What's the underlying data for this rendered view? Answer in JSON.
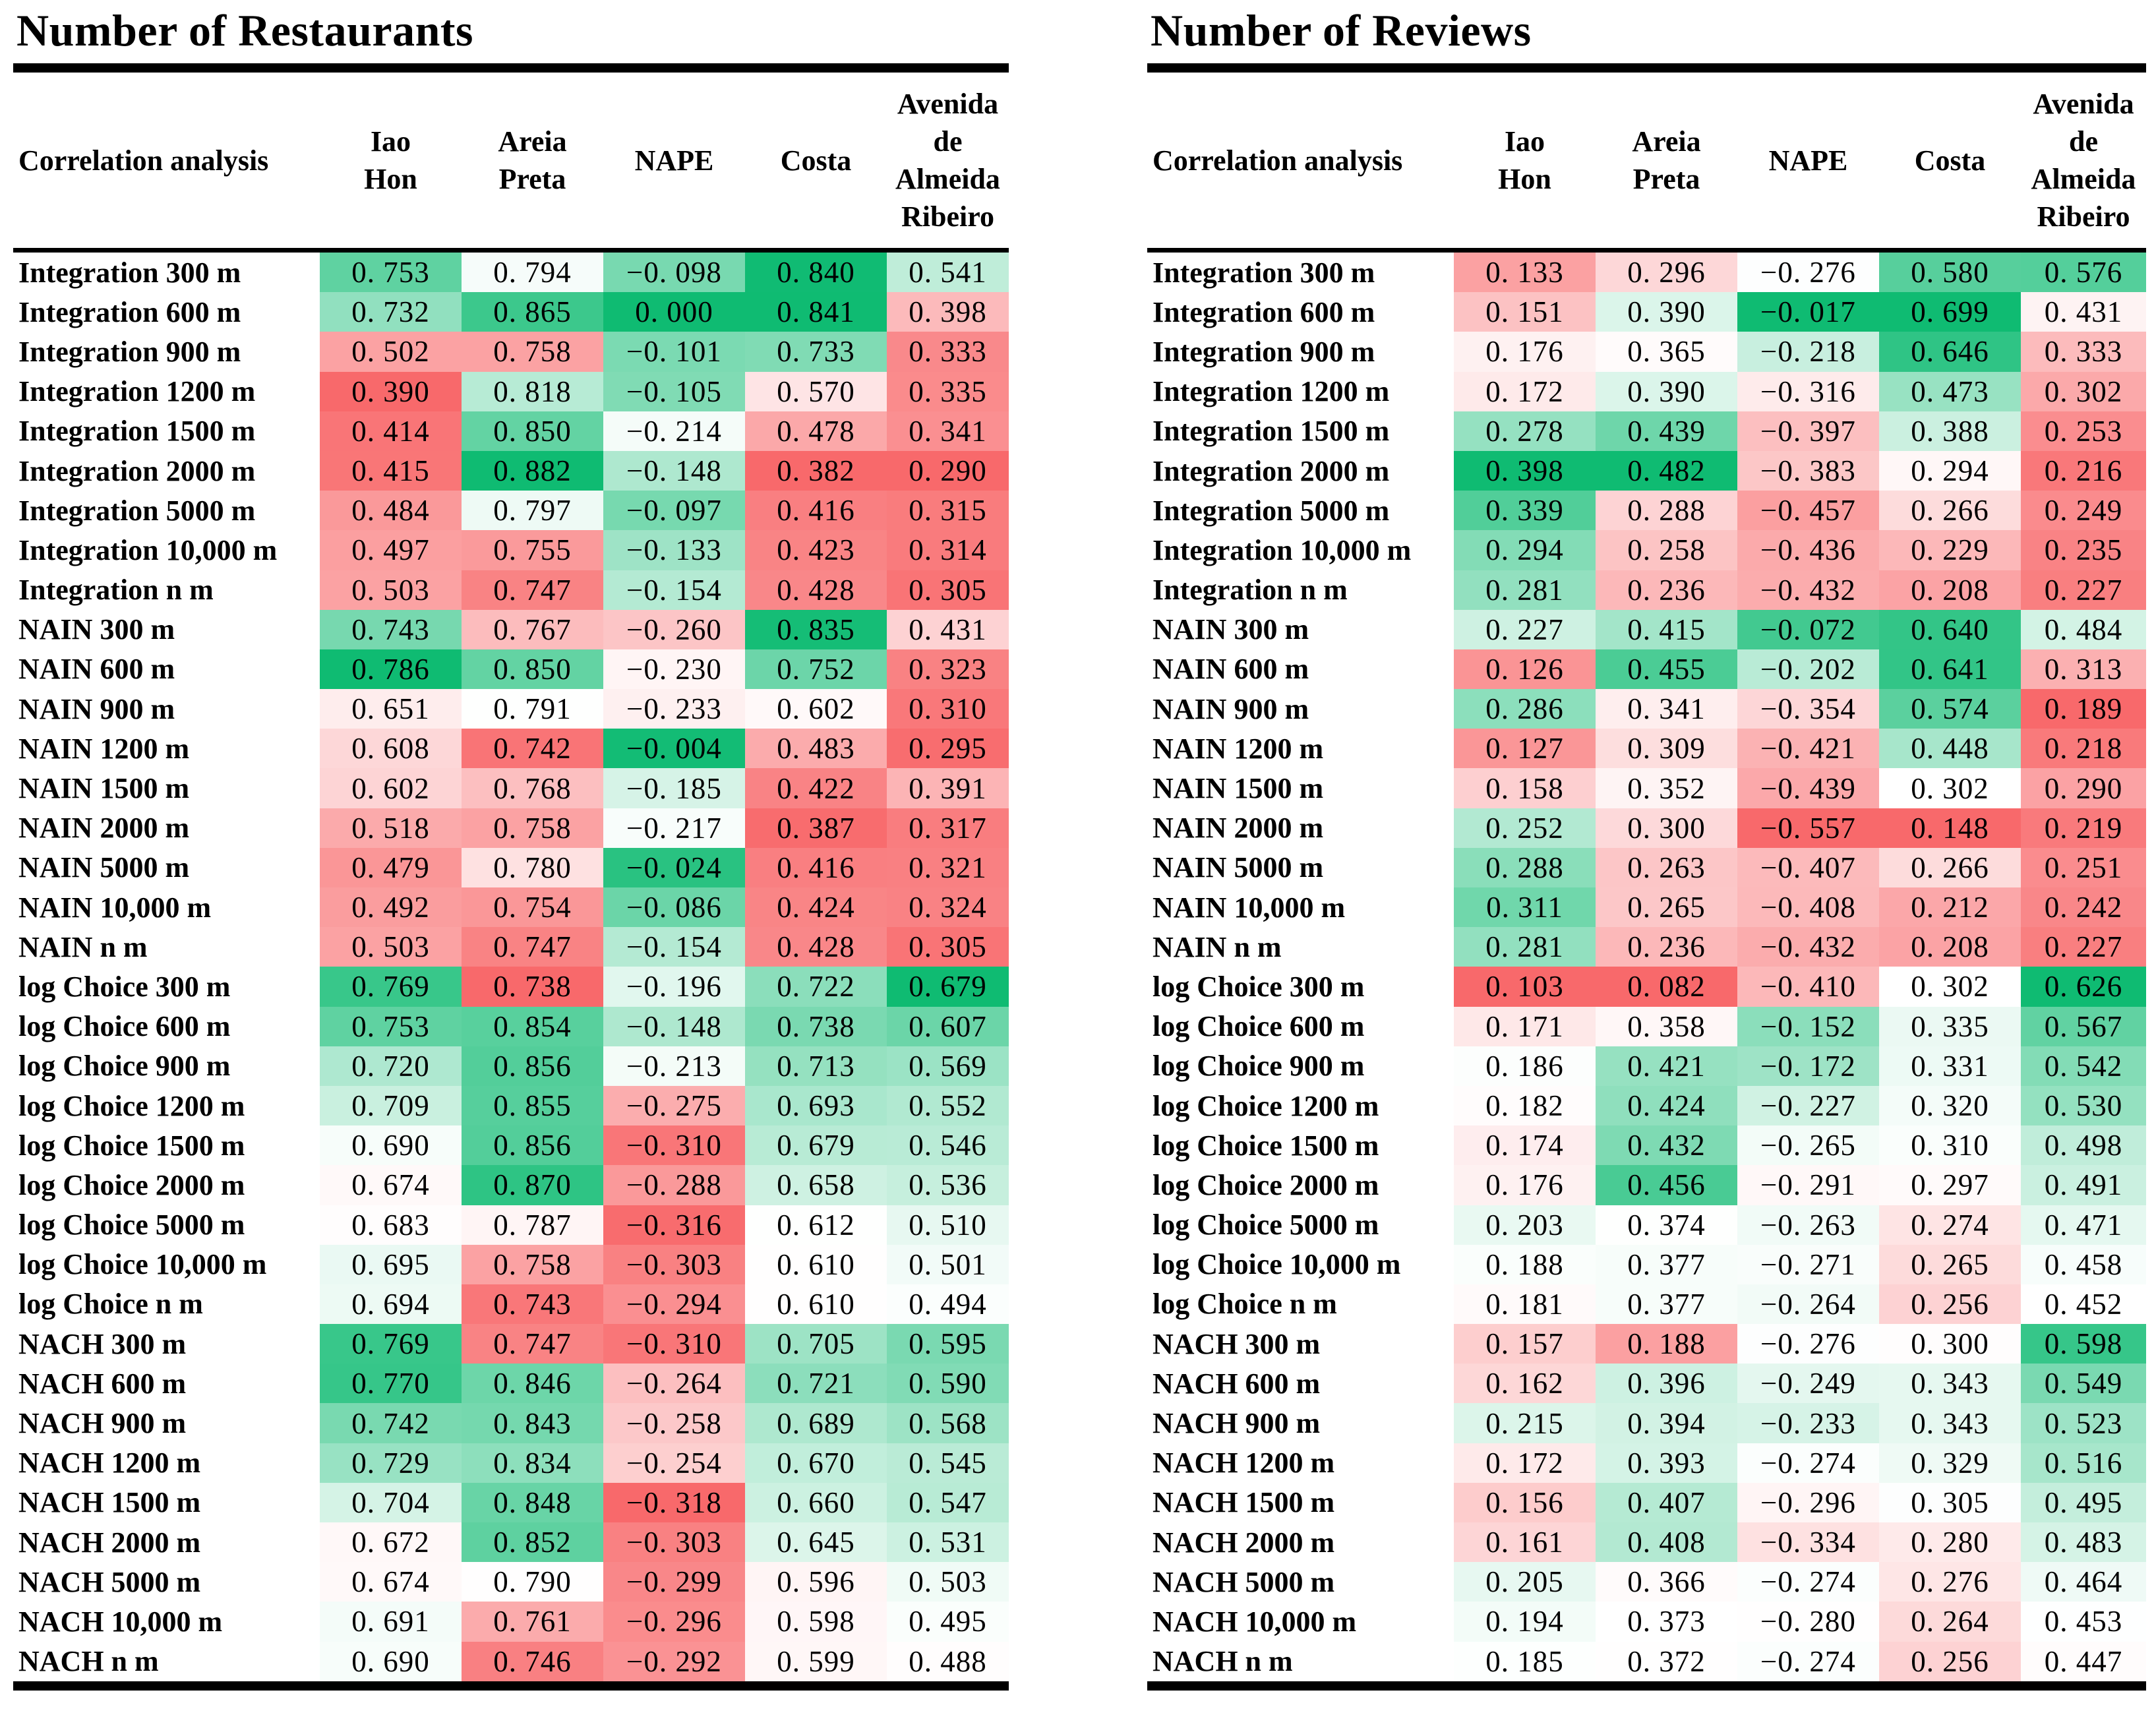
{
  "colors": {
    "scale_min": "#F8696B",
    "scale_mid": "#FFFFFF",
    "scale_max": "#0FBB72",
    "rule": "#000000",
    "text": "#000000"
  },
  "tables": [
    {
      "title": "Number of Restaurants",
      "corner_header": "Correlation analysis",
      "col_headers": [
        [
          "Iao",
          "Hon"
        ],
        [
          "Areia",
          "Preta"
        ],
        [
          "NAPE"
        ],
        [
          "Costa"
        ],
        [
          "Avenida",
          "de",
          "Almeida",
          "Ribeiro"
        ]
      ],
      "rows": [
        {
          "label": "Integration 300 m",
          "values": [
            0.753,
            0.794,
            -0.098,
            0.84,
            0.541
          ]
        },
        {
          "label": "Integration 600 m",
          "values": [
            0.732,
            0.865,
            0.0,
            0.841,
            0.398
          ]
        },
        {
          "label": "Integration 900 m",
          "values": [
            0.502,
            0.758,
            -0.101,
            0.733,
            0.333
          ]
        },
        {
          "label": "Integration 1200 m",
          "values": [
            0.39,
            0.818,
            -0.105,
            0.57,
            0.335
          ]
        },
        {
          "label": "Integration 1500 m",
          "values": [
            0.414,
            0.85,
            -0.214,
            0.478,
            0.341
          ]
        },
        {
          "label": "Integration 2000 m",
          "values": [
            0.415,
            0.882,
            -0.148,
            0.382,
            0.29
          ]
        },
        {
          "label": "Integration 5000 m",
          "values": [
            0.484,
            0.797,
            -0.097,
            0.416,
            0.315
          ]
        },
        {
          "label": "Integration 10,000 m",
          "values": [
            0.497,
            0.755,
            -0.133,
            0.423,
            0.314
          ]
        },
        {
          "label": "Integration n m",
          "values": [
            0.503,
            0.747,
            -0.154,
            0.428,
            0.305
          ]
        },
        {
          "label": "NAIN 300 m",
          "values": [
            0.743,
            0.767,
            -0.26,
            0.835,
            0.431
          ]
        },
        {
          "label": "NAIN 600 m",
          "values": [
            0.786,
            0.85,
            -0.23,
            0.752,
            0.323
          ]
        },
        {
          "label": "NAIN 900 m",
          "values": [
            0.651,
            0.791,
            -0.233,
            0.602,
            0.31
          ]
        },
        {
          "label": "NAIN 1200 m",
          "values": [
            0.608,
            0.742,
            -0.004,
            0.483,
            0.295
          ]
        },
        {
          "label": "NAIN 1500 m",
          "values": [
            0.602,
            0.768,
            -0.185,
            0.422,
            0.391
          ]
        },
        {
          "label": "NAIN 2000 m",
          "values": [
            0.518,
            0.758,
            -0.217,
            0.387,
            0.317
          ]
        },
        {
          "label": "NAIN 5000 m",
          "values": [
            0.479,
            0.78,
            -0.024,
            0.416,
            0.321
          ]
        },
        {
          "label": "NAIN 10,000 m",
          "values": [
            0.492,
            0.754,
            -0.086,
            0.424,
            0.324
          ]
        },
        {
          "label": "NAIN n m",
          "values": [
            0.503,
            0.747,
            -0.154,
            0.428,
            0.305
          ]
        },
        {
          "label": "log Choice 300 m",
          "values": [
            0.769,
            0.738,
            -0.196,
            0.722,
            0.679
          ]
        },
        {
          "label": "log Choice 600 m",
          "values": [
            0.753,
            0.854,
            -0.148,
            0.738,
            0.607
          ]
        },
        {
          "label": "log Choice 900 m",
          "values": [
            0.72,
            0.856,
            -0.213,
            0.713,
            0.569
          ]
        },
        {
          "label": "log Choice 1200 m",
          "values": [
            0.709,
            0.855,
            -0.275,
            0.693,
            0.552
          ]
        },
        {
          "label": "log Choice 1500 m",
          "values": [
            0.69,
            0.856,
            -0.31,
            0.679,
            0.546
          ]
        },
        {
          "label": "log Choice 2000 m",
          "values": [
            0.674,
            0.87,
            -0.288,
            0.658,
            0.536
          ]
        },
        {
          "label": "log Choice 5000 m",
          "values": [
            0.683,
            0.787,
            -0.316,
            0.612,
            0.51
          ]
        },
        {
          "label": "log Choice 10,000 m",
          "values": [
            0.695,
            0.758,
            -0.303,
            0.61,
            0.501
          ]
        },
        {
          "label": "log Choice n m",
          "values": [
            0.694,
            0.743,
            -0.294,
            0.61,
            0.494
          ]
        },
        {
          "label": "NACH 300 m",
          "values": [
            0.769,
            0.747,
            -0.31,
            0.705,
            0.595
          ]
        },
        {
          "label": "NACH 600 m",
          "values": [
            0.77,
            0.846,
            -0.264,
            0.721,
            0.59
          ]
        },
        {
          "label": "NACH 900 m",
          "values": [
            0.742,
            0.843,
            -0.258,
            0.689,
            0.568
          ]
        },
        {
          "label": "NACH 1200 m",
          "values": [
            0.729,
            0.834,
            -0.254,
            0.67,
            0.545
          ]
        },
        {
          "label": "NACH 1500 m",
          "values": [
            0.704,
            0.848,
            -0.318,
            0.66,
            0.547
          ]
        },
        {
          "label": "NACH 2000 m",
          "values": [
            0.672,
            0.852,
            -0.303,
            0.645,
            0.531
          ]
        },
        {
          "label": "NACH 5000 m",
          "values": [
            0.674,
            0.79,
            -0.299,
            0.596,
            0.503
          ]
        },
        {
          "label": "NACH 10,000 m",
          "values": [
            0.691,
            0.761,
            -0.296,
            0.598,
            0.495
          ]
        },
        {
          "label": "NACH n m",
          "values": [
            0.69,
            0.746,
            -0.292,
            0.599,
            0.488
          ]
        }
      ]
    },
    {
      "title": "Number of Reviews",
      "corner_header": "Correlation analysis",
      "col_headers": [
        [
          "Iao",
          "Hon"
        ],
        [
          "Areia",
          "Preta"
        ],
        [
          "NAPE"
        ],
        [
          "Costa"
        ],
        [
          "Avenida",
          "de",
          "Almeida",
          "Ribeiro"
        ]
      ],
      "rows": [
        {
          "label": "Integration 300 m",
          "values": [
            0.133,
            0.296,
            -0.276,
            0.58,
            0.576
          ]
        },
        {
          "label": "Integration 600 m",
          "values": [
            0.151,
            0.39,
            -0.017,
            0.699,
            0.431
          ]
        },
        {
          "label": "Integration 900 m",
          "values": [
            0.176,
            0.365,
            -0.218,
            0.646,
            0.333
          ]
        },
        {
          "label": "Integration 1200 m",
          "values": [
            0.172,
            0.39,
            -0.316,
            0.473,
            0.302
          ]
        },
        {
          "label": "Integration 1500 m",
          "values": [
            0.278,
            0.439,
            -0.397,
            0.388,
            0.253
          ]
        },
        {
          "label": "Integration 2000 m",
          "values": [
            0.398,
            0.482,
            -0.383,
            0.294,
            0.216
          ]
        },
        {
          "label": "Integration 5000 m",
          "values": [
            0.339,
            0.288,
            -0.457,
            0.266,
            0.249
          ]
        },
        {
          "label": "Integration 10,000 m",
          "values": [
            0.294,
            0.258,
            -0.436,
            0.229,
            0.235
          ]
        },
        {
          "label": "Integration n m",
          "values": [
            0.281,
            0.236,
            -0.432,
            0.208,
            0.227
          ]
        },
        {
          "label": "NAIN 300 m",
          "values": [
            0.227,
            0.415,
            -0.072,
            0.64,
            0.484
          ]
        },
        {
          "label": "NAIN 600 m",
          "values": [
            0.126,
            0.455,
            -0.202,
            0.641,
            0.313
          ]
        },
        {
          "label": "NAIN 900 m",
          "values": [
            0.286,
            0.341,
            -0.354,
            0.574,
            0.189
          ]
        },
        {
          "label": "NAIN 1200 m",
          "values": [
            0.127,
            0.309,
            -0.421,
            0.448,
            0.218
          ]
        },
        {
          "label": "NAIN 1500 m",
          "values": [
            0.158,
            0.352,
            -0.439,
            0.302,
            0.29
          ]
        },
        {
          "label": "NAIN 2000 m",
          "values": [
            0.252,
            0.3,
            -0.557,
            0.148,
            0.219
          ]
        },
        {
          "label": "NAIN 5000 m",
          "values": [
            0.288,
            0.263,
            -0.407,
            0.266,
            0.251
          ]
        },
        {
          "label": "NAIN 10,000 m",
          "values": [
            0.311,
            0.265,
            -0.408,
            0.212,
            0.242
          ]
        },
        {
          "label": "NAIN n m",
          "values": [
            0.281,
            0.236,
            -0.432,
            0.208,
            0.227
          ]
        },
        {
          "label": "log Choice 300 m",
          "values": [
            0.103,
            0.082,
            -0.41,
            0.302,
            0.626
          ]
        },
        {
          "label": "log Choice 600 m",
          "values": [
            0.171,
            0.358,
            -0.152,
            0.335,
            0.567
          ]
        },
        {
          "label": "log Choice 900 m",
          "values": [
            0.186,
            0.421,
            -0.172,
            0.331,
            0.542
          ]
        },
        {
          "label": "log Choice 1200 m",
          "values": [
            0.182,
            0.424,
            -0.227,
            0.32,
            0.53
          ]
        },
        {
          "label": "log Choice 1500 m",
          "values": [
            0.174,
            0.432,
            -0.265,
            0.31,
            0.498
          ]
        },
        {
          "label": "log Choice 2000 m",
          "values": [
            0.176,
            0.456,
            -0.291,
            0.297,
            0.491
          ]
        },
        {
          "label": "log Choice 5000 m",
          "values": [
            0.203,
            0.374,
            -0.263,
            0.274,
            0.471
          ]
        },
        {
          "label": "log Choice 10,000 m",
          "values": [
            0.188,
            0.377,
            -0.271,
            0.265,
            0.458
          ]
        },
        {
          "label": "log Choice n m",
          "values": [
            0.181,
            0.377,
            -0.264,
            0.256,
            0.452
          ]
        },
        {
          "label": "NACH 300 m",
          "values": [
            0.157,
            0.188,
            -0.276,
            0.3,
            0.598
          ]
        },
        {
          "label": "NACH 600 m",
          "values": [
            0.162,
            0.396,
            -0.249,
            0.343,
            0.549
          ]
        },
        {
          "label": "NACH 900 m",
          "values": [
            0.215,
            0.394,
            -0.233,
            0.343,
            0.523
          ]
        },
        {
          "label": "NACH 1200 m",
          "values": [
            0.172,
            0.393,
            -0.274,
            0.329,
            0.516
          ]
        },
        {
          "label": "NACH 1500 m",
          "values": [
            0.156,
            0.407,
            -0.296,
            0.305,
            0.495
          ]
        },
        {
          "label": "NACH 2000 m",
          "values": [
            0.161,
            0.408,
            -0.334,
            0.28,
            0.483
          ]
        },
        {
          "label": "NACH 5000 m",
          "values": [
            0.205,
            0.366,
            -0.274,
            0.276,
            0.464
          ]
        },
        {
          "label": "NACH 10,000 m",
          "values": [
            0.194,
            0.373,
            -0.28,
            0.264,
            0.453
          ]
        },
        {
          "label": "NACH n m",
          "values": [
            0.185,
            0.372,
            -0.274,
            0.256,
            0.447
          ]
        }
      ]
    }
  ]
}
